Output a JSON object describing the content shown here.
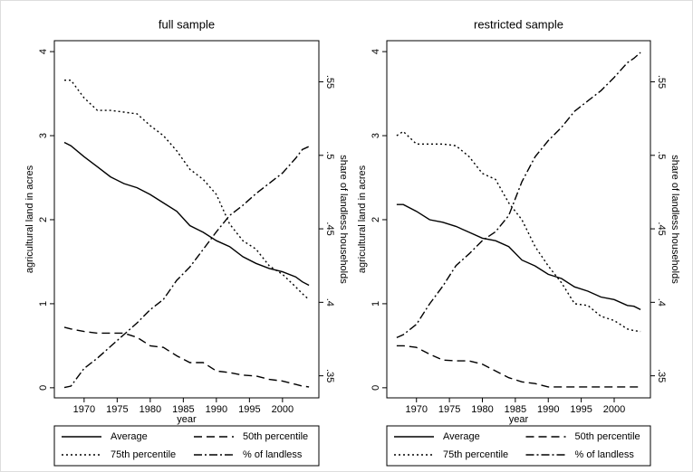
{
  "chart_data": [
    {
      "type": "line",
      "title": "full sample",
      "x_label": "year",
      "y_label": "agricultural land in acres",
      "y2_label": "share of landless households",
      "x": [
        1967,
        1968,
        1970,
        1972,
        1974,
        1976,
        1978,
        1980,
        1982,
        1984,
        1986,
        1988,
        1990,
        1992,
        1994,
        1996,
        1998,
        2000,
        2002,
        2003,
        2004
      ],
      "xlim": [
        1965.5,
        2005.5
      ],
      "xticks": [
        1970,
        1975,
        1980,
        1985,
        1990,
        1995,
        2000
      ],
      "ylim": [
        -0.12,
        4.13
      ],
      "yticks": [
        0,
        1,
        2,
        3,
        4
      ],
      "y2lim": [
        0.335,
        0.578
      ],
      "y2ticks": [
        {
          "value": 0.35,
          "label": ".35"
        },
        {
          "value": 0.4,
          "label": ".4"
        },
        {
          "value": 0.45,
          "label": ".45"
        },
        {
          "value": 0.5,
          "label": ".5"
        },
        {
          "value": 0.55,
          "label": ".55"
        }
      ],
      "legend": "bottom",
      "series": [
        {
          "name": "Average",
          "color": "#000000",
          "dash": "solid",
          "values": [
            2.92,
            2.88,
            2.75,
            2.63,
            2.51,
            2.43,
            2.38,
            2.3,
            2.2,
            2.1,
            1.93,
            1.85,
            1.75,
            1.68,
            1.56,
            1.48,
            1.42,
            1.38,
            1.32,
            1.26,
            1.22
          ]
        },
        {
          "name": "50th percentile",
          "color": "#000000",
          "dash": "dashed",
          "values": [
            0.72,
            0.7,
            0.67,
            0.65,
            0.65,
            0.65,
            0.6,
            0.5,
            0.48,
            0.38,
            0.3,
            0.3,
            0.2,
            0.18,
            0.15,
            0.14,
            0.1,
            0.08,
            0.04,
            0.02,
            0.01
          ]
        },
        {
          "name": "75th percentile",
          "color": "#000000",
          "dash": "dotted",
          "values": [
            3.66,
            3.66,
            3.45,
            3.3,
            3.3,
            3.28,
            3.26,
            3.12,
            3.0,
            2.82,
            2.6,
            2.48,
            2.3,
            1.95,
            1.75,
            1.65,
            1.45,
            1.35,
            1.2,
            1.12,
            1.05
          ]
        },
        {
          "name": "% of landless",
          "color": "#000000",
          "dash": "dash-dot",
          "axis": "y2",
          "values": [
            0.342,
            0.343,
            0.355,
            0.362,
            0.37,
            0.378,
            0.386,
            0.395,
            0.402,
            0.415,
            0.424,
            0.436,
            0.448,
            0.459,
            0.466,
            0.474,
            0.481,
            0.488,
            0.498,
            0.504,
            0.506
          ]
        }
      ]
    },
    {
      "type": "line",
      "title": "restricted sample",
      "x_label": "year",
      "y_label": "agricultural land in acres",
      "y2_label": "share of landless households",
      "x": [
        1967,
        1968,
        1970,
        1972,
        1974,
        1976,
        1978,
        1980,
        1982,
        1984,
        1986,
        1988,
        1990,
        1992,
        1994,
        1996,
        1998,
        2000,
        2002,
        2003,
        2004
      ],
      "xlim": [
        1965.5,
        2005.5
      ],
      "xticks": [
        1970,
        1975,
        1980,
        1985,
        1990,
        1995,
        2000
      ],
      "ylim": [
        -0.12,
        4.13
      ],
      "yticks": [
        0,
        1,
        2,
        3,
        4
      ],
      "y2lim": [
        0.335,
        0.578
      ],
      "y2ticks": [
        {
          "value": 0.35,
          "label": ".35"
        },
        {
          "value": 0.4,
          "label": ".4"
        },
        {
          "value": 0.45,
          "label": ".45"
        },
        {
          "value": 0.5,
          "label": ".5"
        },
        {
          "value": 0.55,
          "label": ".55"
        }
      ],
      "legend": "bottom",
      "series": [
        {
          "name": "Average",
          "color": "#000000",
          "dash": "solid",
          "values": [
            2.18,
            2.18,
            2.1,
            2.0,
            1.97,
            1.92,
            1.85,
            1.78,
            1.75,
            1.68,
            1.52,
            1.45,
            1.35,
            1.3,
            1.2,
            1.15,
            1.08,
            1.05,
            0.98,
            0.97,
            0.93
          ]
        },
        {
          "name": "50th percentile",
          "color": "#000000",
          "dash": "dashed",
          "values": [
            0.5,
            0.5,
            0.48,
            0.4,
            0.33,
            0.32,
            0.32,
            0.28,
            0.2,
            0.12,
            0.07,
            0.05,
            0.01,
            0.01,
            0.01,
            0.01,
            0.01,
            0.01,
            0.01,
            0.01,
            0.01
          ]
        },
        {
          "name": "75th percentile",
          "color": "#000000",
          "dash": "dotted",
          "values": [
            3.0,
            3.05,
            2.9,
            2.9,
            2.9,
            2.88,
            2.75,
            2.55,
            2.48,
            2.2,
            2.0,
            1.68,
            1.45,
            1.25,
            1.0,
            0.98,
            0.85,
            0.8,
            0.7,
            0.68,
            0.67
          ]
        },
        {
          "name": "% of landless",
          "color": "#000000",
          "dash": "dash-dot",
          "axis": "y2",
          "values": [
            0.376,
            0.378,
            0.385,
            0.399,
            0.411,
            0.425,
            0.433,
            0.442,
            0.448,
            0.459,
            0.482,
            0.499,
            0.51,
            0.519,
            0.53,
            0.537,
            0.544,
            0.553,
            0.563,
            0.566,
            0.57
          ]
        }
      ]
    }
  ]
}
